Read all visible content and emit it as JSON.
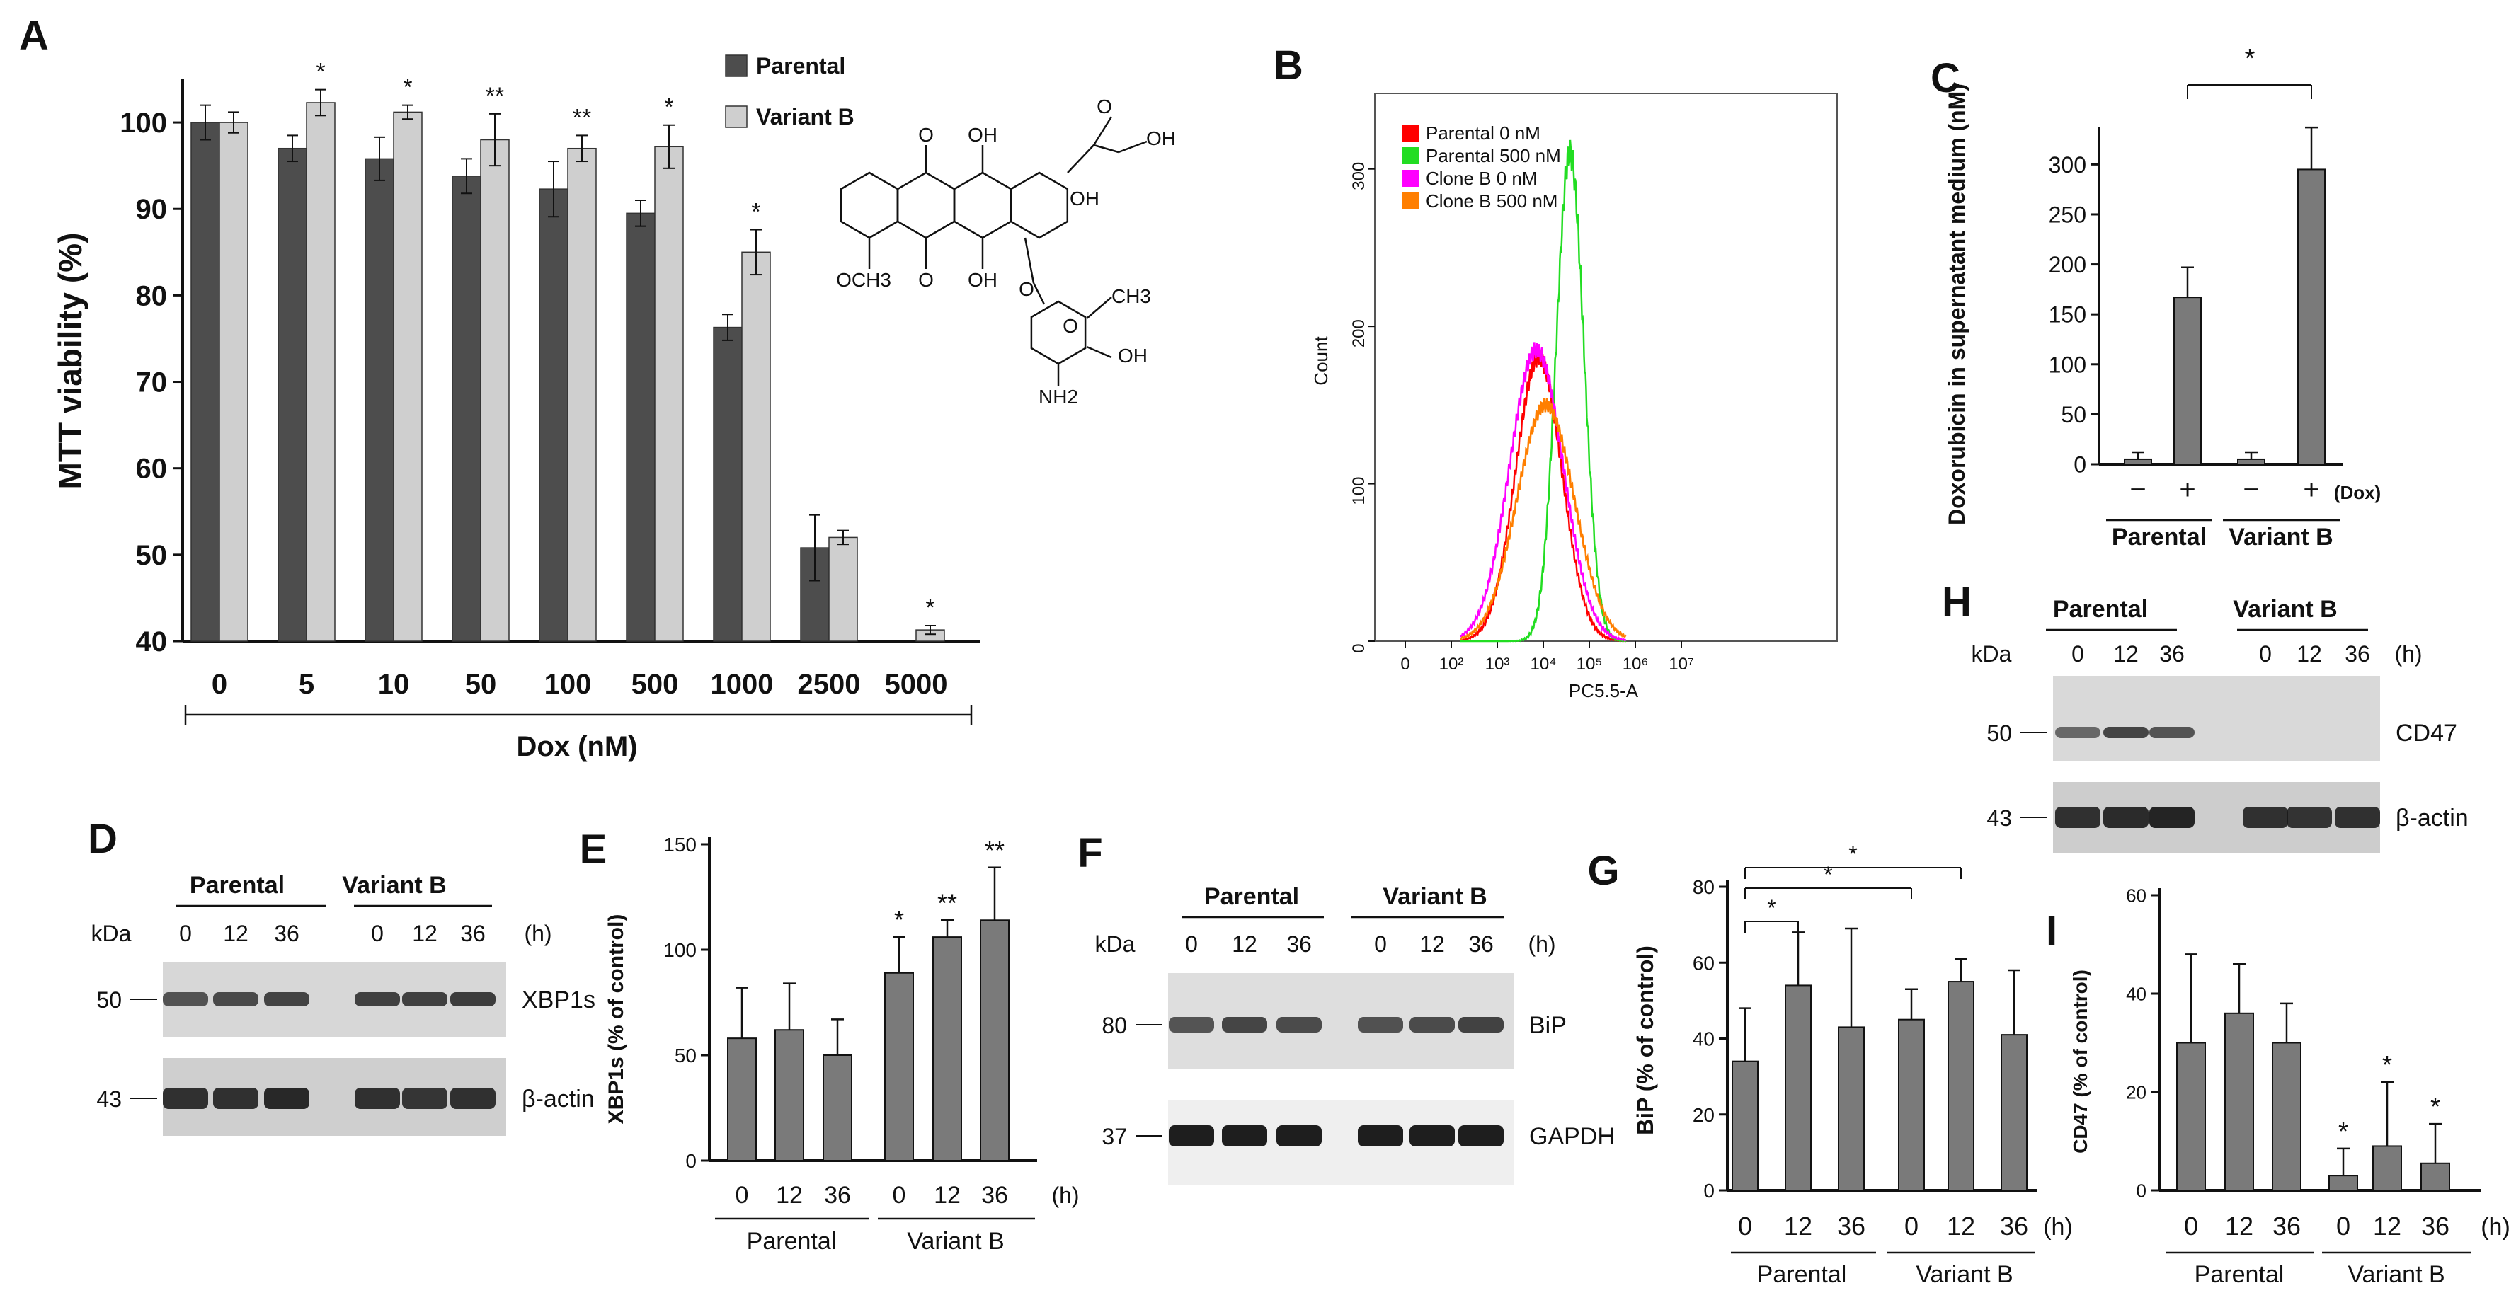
{
  "colors": {
    "dark_bar": "#4d4d4d",
    "light_bar": "#cfcfcf",
    "gray_bar": "#7a7a7a",
    "parental_0": "#ff0000",
    "parental_500": "#22dd22",
    "cloneB_0": "#ff00ff",
    "cloneB_500": "#ff7f00"
  },
  "panels": {
    "A": "A",
    "B": "B",
    "C": "C",
    "D": "D",
    "E": "E",
    "F": "F",
    "G": "G",
    "H": "H",
    "I": "I"
  },
  "chart_data": [
    {
      "id": "A",
      "type": "bar",
      "ylabel": "MTT viability (%)",
      "xlabel": "Dox (nM)",
      "ylim": [
        40,
        105
      ],
      "yticks": [
        40,
        50,
        60,
        70,
        80,
        90,
        100
      ],
      "categories": [
        "0",
        "5",
        "10",
        "50",
        "100",
        "500",
        "1000",
        "2500",
        "5000"
      ],
      "series": [
        {
          "name": "Parental",
          "values": [
            100,
            97,
            95.8,
            93.8,
            92.3,
            89.5,
            76.3,
            50.8,
            null
          ],
          "errors": [
            2,
            1.5,
            2.5,
            2,
            3.2,
            1.5,
            1.5,
            3.8,
            null
          ]
        },
        {
          "name": "Variant B",
          "values": [
            100,
            102.3,
            101.2,
            98,
            97,
            97.2,
            85,
            52,
            41.3
          ],
          "errors": [
            1.2,
            1.5,
            0.8,
            3,
            1.5,
            2.5,
            2.6,
            0.8,
            0.5
          ]
        }
      ],
      "significance": [
        "",
        "*",
        "*",
        "**",
        "**",
        "*",
        "*",
        "",
        "*"
      ],
      "legend": [
        "Parental",
        "Variant B"
      ],
      "structure_labels": [
        "O",
        "OH",
        "O",
        "OH",
        "OH",
        "OCH3",
        "O",
        "OH",
        "O",
        "O",
        "CH3",
        "OH",
        "NH2"
      ]
    },
    {
      "id": "B",
      "type": "line",
      "title": "",
      "xlabel": "PC5.5-A",
      "ylabel": "Count",
      "yticks": [
        "0",
        "100",
        "200",
        "300"
      ],
      "xticks": [
        "0",
        "10²",
        "10³",
        "10⁴",
        "10⁵",
        "10⁶",
        "10⁷"
      ],
      "legend": [
        "Parental  0 nM",
        "Parental  500 nM",
        "Clone B  0 nM",
        "Clone B  500 nM"
      ],
      "series": [
        {
          "name": "Parental  0 nM",
          "peak_log_x": 3.9,
          "peak_count": 180,
          "width": 0.5
        },
        {
          "name": "Parental  500 nM",
          "peak_log_x": 4.58,
          "peak_count": 310,
          "width": 0.3
        },
        {
          "name": "Clone B  0 nM",
          "peak_log_x": 3.85,
          "peak_count": 185,
          "width": 0.58
        },
        {
          "name": "Clone B  500 nM",
          "peak_log_x": 4.05,
          "peak_count": 150,
          "width": 0.62
        }
      ]
    },
    {
      "id": "C",
      "type": "bar",
      "ylabel": "Doxorubicin in supernatant medium (nM)",
      "ylim": [
        0,
        330
      ],
      "yticks": [
        0,
        50,
        100,
        150,
        200,
        250,
        300
      ],
      "categories": [
        "−",
        "+",
        "−",
        "+"
      ],
      "dox_label": "(Dox)",
      "groups": [
        "Parental",
        "Variant B"
      ],
      "values": [
        5,
        167,
        5,
        295
      ],
      "errors": [
        7,
        30,
        7,
        42
      ],
      "significance_label": "*"
    },
    {
      "id": "E",
      "type": "bar",
      "ylabel": "XBP1s (% of control)",
      "ylim": [
        0,
        150
      ],
      "yticks": [
        0,
        50,
        100,
        150
      ],
      "categories": [
        "0",
        "12",
        "36",
        "0",
        "12",
        "36"
      ],
      "unit": "(h)",
      "groups": [
        "Parental",
        "Variant B"
      ],
      "values": [
        58,
        62,
        50,
        89,
        106,
        114
      ],
      "errors": [
        24,
        22,
        17,
        17,
        8,
        25
      ],
      "significance": [
        "",
        "",
        "",
        "*",
        "**",
        "**"
      ]
    },
    {
      "id": "G",
      "type": "bar",
      "ylabel": "BiP (% of control)",
      "ylim": [
        0,
        80
      ],
      "yticks": [
        0,
        20,
        40,
        60,
        80
      ],
      "categories": [
        "0",
        "12",
        "36",
        "0",
        "12",
        "36"
      ],
      "unit": "(h)",
      "groups": [
        "Parental",
        "Variant B"
      ],
      "values": [
        34,
        54,
        43,
        45,
        55,
        41
      ],
      "errors": [
        14,
        14,
        26,
        8,
        6,
        17
      ],
      "significance_labels": [
        "*",
        "*",
        "*"
      ]
    },
    {
      "id": "I",
      "type": "bar",
      "ylabel": "CD47 (% of control)",
      "ylim": [
        0,
        60
      ],
      "yticks": [
        0,
        20,
        40,
        60
      ],
      "categories": [
        "0",
        "12",
        "36",
        "0",
        "12",
        "36"
      ],
      "unit": "(h)",
      "groups": [
        "Parental",
        "Variant B"
      ],
      "values": [
        30,
        36,
        30,
        3,
        9,
        5.5
      ],
      "errors": [
        18,
        10,
        8,
        5.5,
        13,
        8
      ],
      "significance": [
        "",
        "",
        "",
        "*",
        "*",
        "*"
      ]
    }
  ],
  "blots": {
    "D": {
      "groups": [
        "Parental",
        "Variant B"
      ],
      "kda": "kDa",
      "lanes": [
        "0",
        "12",
        "36",
        "0",
        "12",
        "36"
      ],
      "unit": "(h)",
      "markers": [
        "50",
        "43"
      ],
      "bands": [
        "XBP1s",
        "β-actin"
      ]
    },
    "F": {
      "groups": [
        "Parental",
        "Variant B"
      ],
      "kda": "kDa",
      "lanes": [
        "0",
        "12",
        "36",
        "0",
        "12",
        "36"
      ],
      "unit": "(h)",
      "markers": [
        "80",
        "37"
      ],
      "bands": [
        "BiP",
        "GAPDH"
      ]
    },
    "H": {
      "groups": [
        "Parental",
        "Variant B"
      ],
      "kda": "kDa",
      "lanes": [
        "0",
        "12",
        "36",
        "0",
        "12",
        "36"
      ],
      "unit": "(h)",
      "markers": [
        "50",
        "43"
      ],
      "bands": [
        "CD47",
        "β-actin"
      ]
    }
  }
}
